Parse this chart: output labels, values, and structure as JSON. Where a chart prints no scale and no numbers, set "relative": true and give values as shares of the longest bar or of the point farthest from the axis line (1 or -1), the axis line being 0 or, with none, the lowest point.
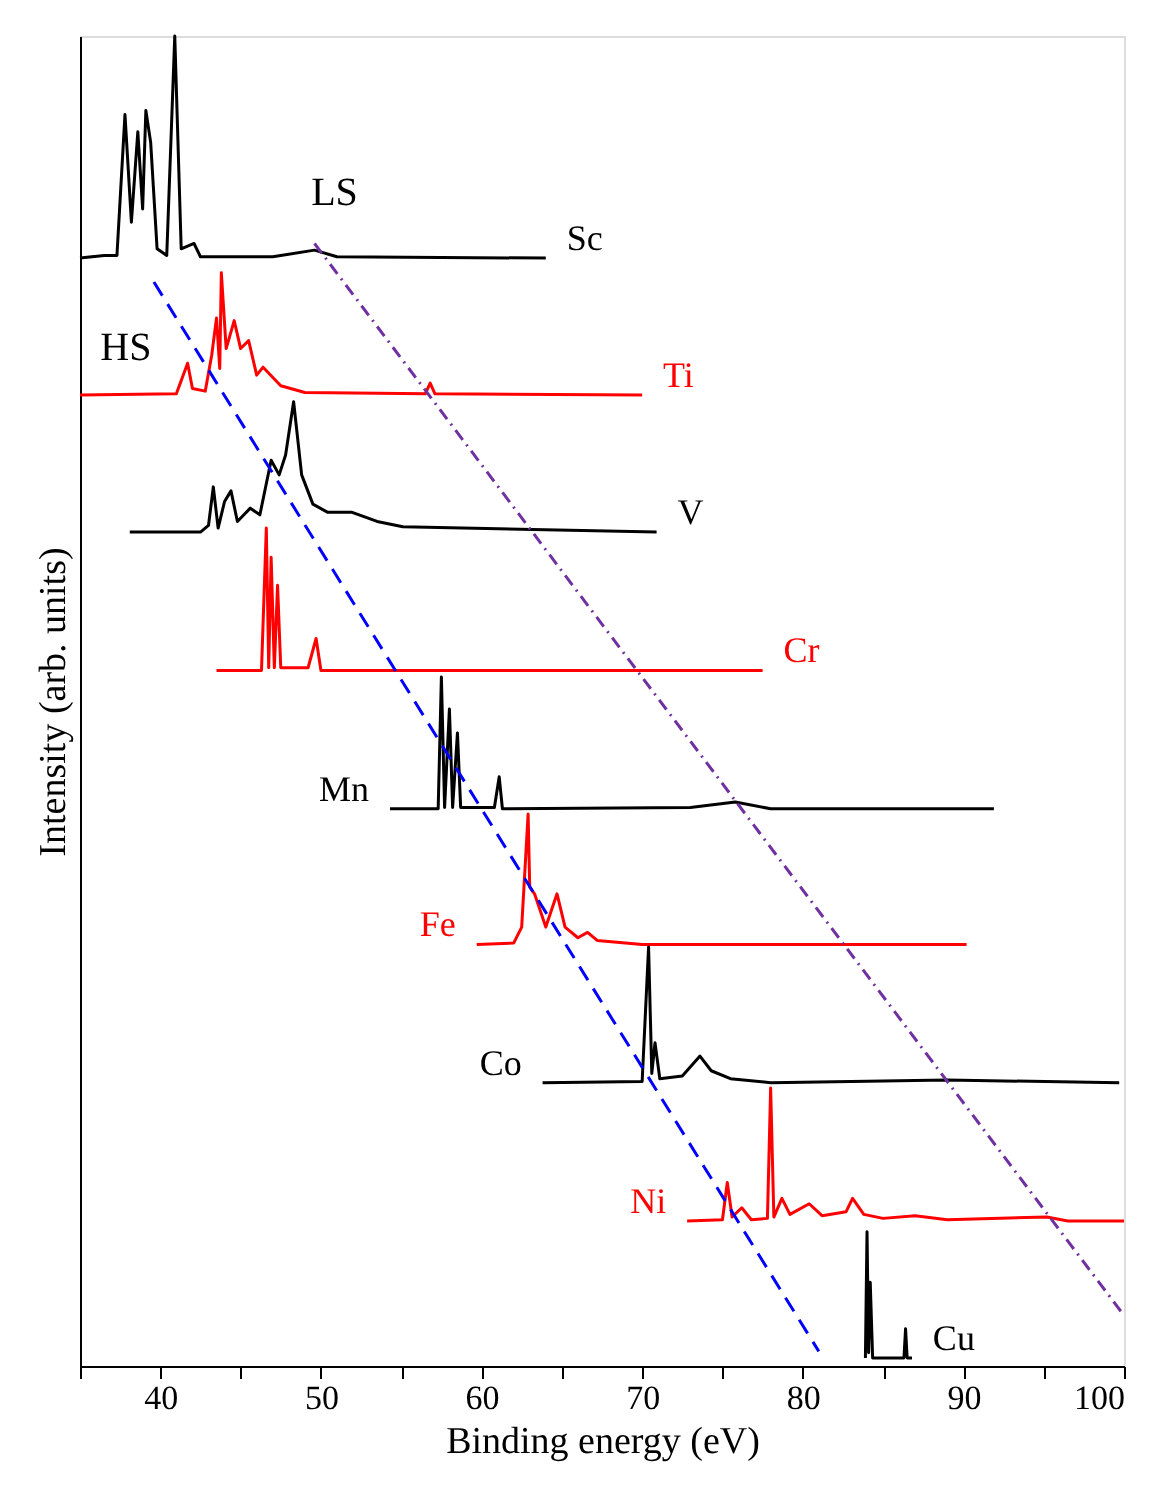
{
  "chart_data": {
    "type": "line",
    "relative": true,
    "xlabel": "Binding energy (eV)",
    "ylabel": "Intensity (arb. units)",
    "xlim": [
      35,
      100
    ],
    "xticks": [
      {
        "value": 35,
        "label": null
      },
      40,
      {
        "value": 45,
        "label": null
      },
      50,
      {
        "value": 55,
        "label": null
      },
      60,
      {
        "value": 65,
        "label": null
      },
      70,
      {
        "value": 75,
        "label": null
      },
      80,
      {
        "value": 85,
        "label": null
      },
      90,
      {
        "value": 95,
        "label": null
      },
      100
    ],
    "tick_labels": "x",
    "grid": false,
    "marker": "none",
    "line_style": "solid",
    "annotations": [
      "HS",
      "LS"
    ],
    "series": [
      {
        "name": "Sc",
        "color": "#000000",
        "x": [
          35,
          36.5,
          37.3,
          37.8,
          38.2,
          38.6,
          38.9,
          39.1,
          39.4,
          39.8,
          40.4,
          40.9,
          41.3,
          42.1,
          42.5,
          47,
          49.6,
          51,
          64
        ],
        "values": [
          0.833,
          0.835,
          0.835,
          0.941,
          0.86,
          0.928,
          0.87,
          0.944,
          0.92,
          0.84,
          0.835,
          1.0,
          0.84,
          0.844,
          0.834,
          0.834,
          0.839,
          0.834,
          0.833
        ]
      },
      {
        "name": "Ti",
        "color": "#ff0000",
        "x": [
          35,
          41,
          41.7,
          42.0,
          42.8,
          43.2,
          43.5,
          43.7,
          43.8,
          44.1,
          44.6,
          45.0,
          45.5,
          46.0,
          46.4,
          47.5,
          49,
          56.5,
          56.8,
          57.1,
          70
        ],
        "values": [
          0.73,
          0.731,
          0.754,
          0.735,
          0.733,
          0.76,
          0.788,
          0.75,
          0.822,
          0.765,
          0.786,
          0.765,
          0.771,
          0.745,
          0.751,
          0.737,
          0.732,
          0.731,
          0.739,
          0.731,
          0.73
        ]
      },
      {
        "name": "V",
        "color": "#000000",
        "x": [
          38.1,
          42.5,
          43.0,
          43.3,
          43.6,
          44.0,
          44.4,
          44.8,
          45.6,
          46.2,
          46.9,
          47.4,
          47.8,
          48.3,
          48.8,
          49.5,
          50.4,
          51.9,
          53.5,
          55.1,
          70.9
        ],
        "values": [
          0.627,
          0.627,
          0.632,
          0.661,
          0.63,
          0.65,
          0.658,
          0.635,
          0.645,
          0.64,
          0.681,
          0.67,
          0.685,
          0.725,
          0.67,
          0.648,
          0.642,
          0.642,
          0.635,
          0.631,
          0.627
        ]
      },
      {
        "name": "Cr",
        "color": "#ff0000",
        "x": [
          43.5,
          46.3,
          46.6,
          46.75,
          46.9,
          47.1,
          47.3,
          47.5,
          49.2,
          49.7,
          50.0,
          77.5
        ],
        "values": [
          0.523,
          0.523,
          0.63,
          0.525,
          0.608,
          0.525,
          0.587,
          0.525,
          0.525,
          0.547,
          0.523,
          0.523
        ]
      },
      {
        "name": "Mn",
        "color": "#000000",
        "x": [
          54.3,
          57.3,
          57.5,
          57.7,
          58.0,
          58.2,
          58.5,
          58.7,
          60.8,
          61.1,
          61.3,
          73,
          75.8,
          78,
          91.9
        ],
        "values": [
          0.419,
          0.419,
          0.518,
          0.42,
          0.494,
          0.42,
          0.476,
          0.42,
          0.42,
          0.443,
          0.419,
          0.42,
          0.424,
          0.419,
          0.419
        ]
      },
      {
        "name": "Fe",
        "color": "#ff0000",
        "x": [
          59.7,
          62.0,
          62.5,
          62.9,
          63.0,
          63.3,
          64.0,
          64.7,
          65.2,
          66.0,
          66.6,
          67.2,
          70,
          90.2
        ],
        "values": [
          0.317,
          0.318,
          0.33,
          0.415,
          0.36,
          0.355,
          0.33,
          0.355,
          0.33,
          0.322,
          0.326,
          0.32,
          0.317,
          0.317
        ]
      },
      {
        "name": "Co",
        "color": "#000000",
        "x": [
          63.8,
          70.0,
          70.4,
          70.6,
          70.8,
          71.1,
          72.5,
          73.6,
          74.3,
          75.5,
          78,
          89,
          99.7
        ],
        "values": [
          0.213,
          0.214,
          0.315,
          0.22,
          0.243,
          0.216,
          0.218,
          0.233,
          0.222,
          0.216,
          0.213,
          0.215,
          0.213
        ]
      },
      {
        "name": "Ni",
        "color": "#ff0000",
        "x": [
          72.8,
          75.0,
          75.3,
          75.6,
          76.2,
          76.8,
          77.8,
          78.0,
          78.2,
          78.7,
          79.2,
          80.4,
          81.2,
          82.7,
          83.1,
          83.8,
          85,
          87.0,
          89,
          95.2,
          96.5,
          100
        ],
        "values": [
          0.109,
          0.11,
          0.138,
          0.112,
          0.119,
          0.11,
          0.111,
          0.209,
          0.112,
          0.126,
          0.114,
          0.122,
          0.113,
          0.116,
          0.126,
          0.114,
          0.111,
          0.113,
          0.11,
          0.112,
          0.109,
          0.109
        ]
      },
      {
        "name": "Cu",
        "color": "#000000",
        "x": [
          83.9,
          84.0,
          84.1,
          84.2,
          84.35,
          86.3,
          86.4,
          86.5,
          86.8
        ],
        "values": [
          0.006,
          0.101,
          0.01,
          0.063,
          0.006,
          0.006,
          0.028,
          0.006,
          0.006
        ]
      },
      {
        "color": "#0000ff",
        "line_style": "dashed",
        "x": [
          39.6,
          81.0
        ],
        "values": [
          0.815,
          0.011
        ]
      },
      {
        "color": "#7030a0",
        "line_style": "dotted",
        "x": [
          49.6,
          100
        ],
        "values": [
          0.844,
          0.038
        ]
      }
    ]
  }
}
